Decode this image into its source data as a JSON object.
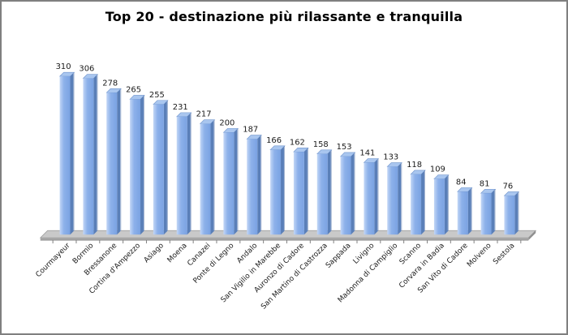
{
  "window": {
    "background": "#ffffff",
    "border_color": "#7f7f7f"
  },
  "chart_data": {
    "type": "bar",
    "title": "Top 20 - destinazione più rilassante e tranquilla",
    "categories": [
      "Courmayeur",
      "Bormio",
      "Bressanone",
      "Cortina d'Ampezzo",
      "Asiago",
      "Moena",
      "Canazei",
      "Ponte di Legno",
      "Andalo",
      "San Vigilio in Marebbe",
      "Auronzo di Cadore",
      "San Martino di Castrozza",
      "Sappada",
      "Livigno",
      "Madonna di Campiglio",
      "Scanno",
      "Corvara in Badia",
      "San Vito di Cadore",
      "Molveno",
      "Sestola"
    ],
    "values": [
      310,
      306,
      278,
      265,
      255,
      231,
      217,
      200,
      187,
      166,
      162,
      158,
      153,
      141,
      133,
      118,
      109,
      84,
      81,
      76
    ],
    "xlabel": "",
    "ylabel": "",
    "ylim": [
      0,
      310
    ],
    "grid": false,
    "legend": "none",
    "y_axis_visible": false,
    "value_labels_visible": true,
    "bar_style": "3d",
    "colors": {
      "bar_face_light": "#c2d6f6",
      "bar_face_mid": "#8db1ea",
      "bar_face_dark": "#7aa2e2",
      "bar_side": "#5a7fb8",
      "bar_side_highlight": "#aebdd6",
      "bar_top": "#a9c6ef",
      "bar_edge": "#6e93cc",
      "floor_top": "#c9c9c9",
      "floor_front": "#a8a8a8",
      "floor_side": "#8f8f8f",
      "floor_edge": "#9b9b9b",
      "axis": "#808080",
      "label": "#1a1a1a",
      "title": "#000000"
    }
  }
}
